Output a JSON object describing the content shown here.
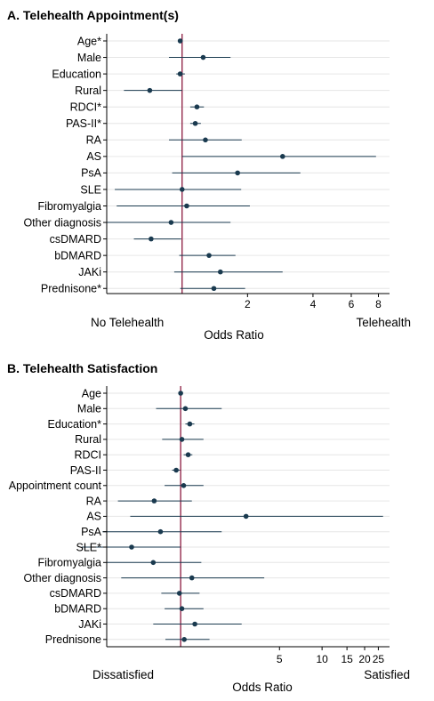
{
  "chart_data": [
    {
      "type": "scatter",
      "panel": "A",
      "title": "A. Telehealth Appointment(s)",
      "xlabel": "Odds Ratio",
      "x_scale": "log",
      "xlim": [
        0.45,
        9
      ],
      "reference_line": 1,
      "left_annotation": "No Telehealth",
      "right_annotation": "Telehealth",
      "xticks": [
        2,
        4,
        6,
        8
      ],
      "xtick_labels": [
        "2",
        "4",
        "6",
        "8"
      ],
      "grid": "horizontal",
      "categories": [
        "Age*",
        "Male",
        "Education",
        "Rural",
        "RDCI*",
        "PAS-II*",
        "RA",
        "AS",
        "PsA",
        "SLE",
        "Fibromyalgia",
        "Other diagnosis",
        "csDMARD",
        "bDMARD",
        "JAKi",
        "Prednisone*"
      ],
      "values": [
        0.98,
        1.25,
        0.98,
        0.71,
        1.17,
        1.15,
        1.28,
        2.9,
        1.8,
        1.0,
        1.05,
        0.89,
        0.72,
        1.33,
        1.5,
        1.4
      ],
      "ci_lower": [
        0.97,
        0.87,
        0.94,
        0.54,
        1.09,
        1.09,
        0.87,
        1.0,
        0.9,
        0.49,
        0.5,
        0.45,
        0.6,
        0.97,
        0.92,
        0.98
      ],
      "ci_upper": [
        1.0,
        1.67,
        1.03,
        1.0,
        1.26,
        1.22,
        1.88,
        7.8,
        3.5,
        1.87,
        2.05,
        1.67,
        0.99,
        1.76,
        2.9,
        1.95
      ]
    },
    {
      "type": "scatter",
      "panel": "B",
      "title": "B. Telehealth Satisfaction",
      "xlabel": "Odds Ratio",
      "x_scale": "log",
      "xlim": [
        0.3,
        30
      ],
      "reference_line": 1,
      "left_annotation": "Dissatisfied",
      "right_annotation": "Satisfied",
      "xticks": [
        5,
        10,
        15,
        20,
        25
      ],
      "xtick_labels": [
        "5",
        "10",
        "15",
        "20",
        "25"
      ],
      "grid": "horizontal",
      "categories": [
        "Age",
        "Male",
        "Education*",
        "Rural",
        "RDCI",
        "PAS-II",
        "Appointment count",
        "RA",
        "AS",
        "PsA",
        "SLE*",
        "Fibromyalgia",
        "Other diagnosis",
        "csDMARD",
        "bDMARD",
        "JAKi",
        "Prednisone"
      ],
      "values": [
        1.0,
        1.08,
        1.16,
        1.02,
        1.13,
        0.93,
        1.05,
        0.65,
        2.9,
        0.72,
        0.45,
        0.64,
        1.2,
        0.98,
        1.02,
        1.26,
        1.06
      ],
      "ci_lower": [
        0.98,
        0.67,
        1.08,
        0.74,
        1.05,
        0.87,
        0.77,
        0.36,
        0.44,
        0.28,
        0.2,
        0.3,
        0.38,
        0.73,
        0.77,
        0.64,
        0.78
      ],
      "ci_upper": [
        1.02,
        1.95,
        1.25,
        1.45,
        1.21,
        0.99,
        1.45,
        1.2,
        27,
        1.95,
        1.0,
        1.4,
        3.9,
        1.36,
        1.45,
        2.7,
        1.6
      ]
    }
  ],
  "colors": {
    "marker": "#1a3a4f",
    "ci_line": "#1a3a4f",
    "reference_line": "#8b1a3f",
    "grid": "#e6e6e6",
    "axis": "#000000"
  }
}
